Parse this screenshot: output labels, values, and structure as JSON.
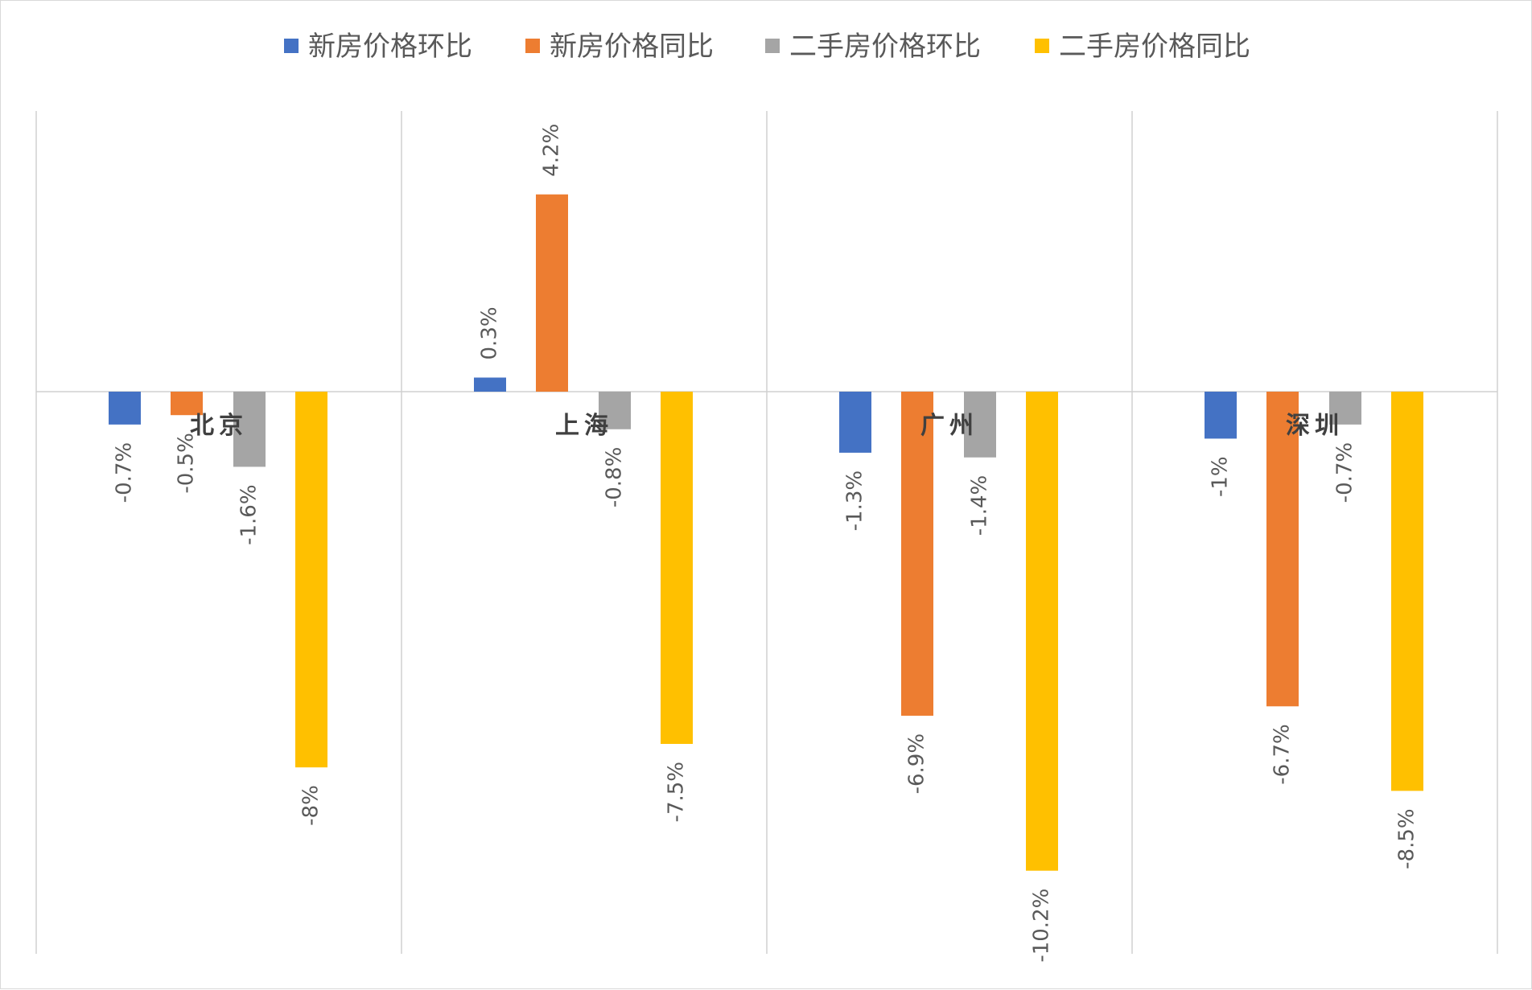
{
  "chart_data": {
    "type": "bar",
    "title": "",
    "xlabel": "",
    "ylabel": "",
    "categories": [
      "北京",
      "上海",
      "广州",
      "深圳"
    ],
    "series": [
      {
        "name": "新房价格环比",
        "color": "#4472C4",
        "values": [
          -0.7,
          0.3,
          -1.3,
          -1.0
        ],
        "labels": [
          "-0.7%",
          "0.3%",
          "-1.3%",
          "-1%"
        ]
      },
      {
        "name": "新房价格同比",
        "color": "#ED7D31",
        "values": [
          -0.5,
          4.2,
          -6.9,
          -6.7
        ],
        "labels": [
          "-0.5%",
          "4.2%",
          "-6.9%",
          "-6.7%"
        ]
      },
      {
        "name": "二手房价格环比",
        "color": "#A5A5A5",
        "values": [
          -1.6,
          -0.8,
          -1.4,
          -0.7
        ],
        "labels": [
          "-1.6%",
          "-0.8%",
          "-1.4%",
          "-0.7%"
        ]
      },
      {
        "name": "二手房价格同比",
        "color": "#FFC000",
        "values": [
          -8.0,
          -7.5,
          -10.2,
          -8.5
        ],
        "labels": [
          "-8%",
          "-7.5%",
          "-10.2%",
          "-8.5%"
        ]
      }
    ],
    "ylim": [
      -12,
      6
    ],
    "legend": "top",
    "grid": false,
    "category_separators": true
  }
}
